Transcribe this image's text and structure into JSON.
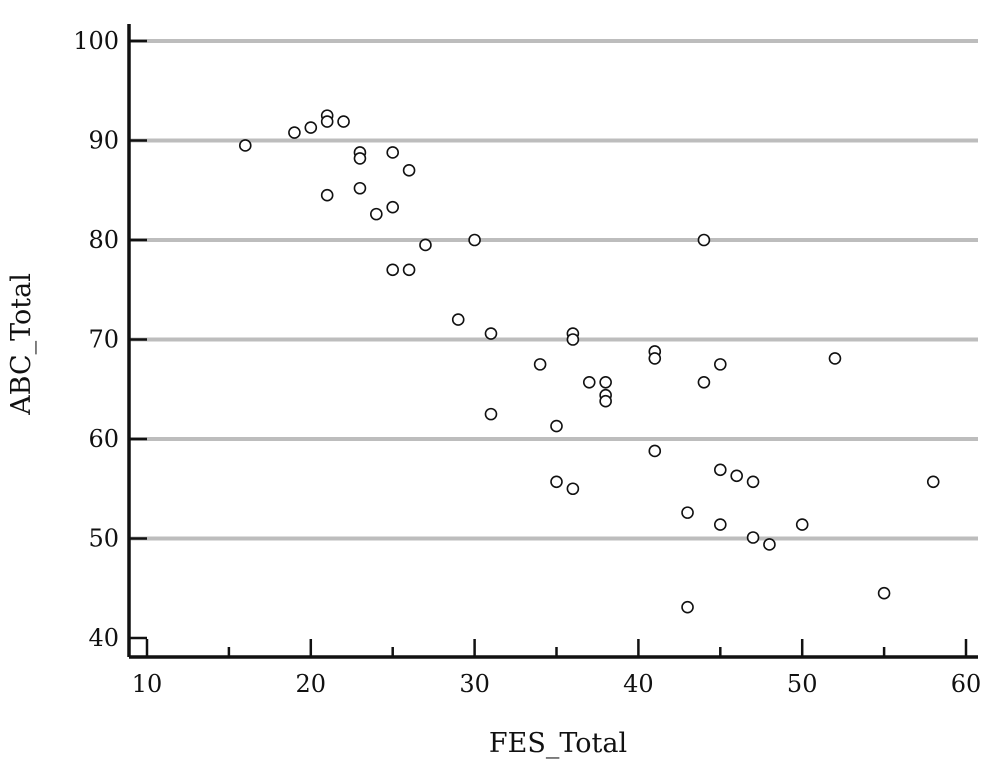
{
  "chart_data": {
    "type": "scatter",
    "xlabel": "FES_Total",
    "ylabel": "ABC_Total",
    "xlim": [
      10,
      60
    ],
    "ylim": [
      40,
      100
    ],
    "x_ticks": [
      10,
      20,
      30,
      40,
      50,
      60
    ],
    "y_ticks": [
      40,
      50,
      60,
      70,
      80,
      90,
      100
    ],
    "x_minor_step": 5,
    "grid": "horizontal",
    "legend": "none",
    "colors": {
      "grid": "#bdbdbd",
      "axis": "#111111",
      "marker_fill": "#ffffff"
    },
    "marker": "open-circle",
    "series": [
      {
        "points": [
          [
            16,
            89.5
          ],
          [
            19,
            90.8
          ],
          [
            20,
            91.3
          ],
          [
            21,
            92.5
          ],
          [
            21,
            91.9
          ],
          [
            22,
            91.9
          ],
          [
            21,
            84.5
          ],
          [
            23,
            88.8
          ],
          [
            23,
            88.2
          ],
          [
            23,
            85.2
          ],
          [
            24,
            82.6
          ],
          [
            25,
            88.8
          ],
          [
            25,
            83.3
          ],
          [
            26,
            87.0
          ],
          [
            25,
            77.0
          ],
          [
            26,
            77.0
          ],
          [
            27,
            79.5
          ],
          [
            30,
            80.0
          ],
          [
            29,
            72.0
          ],
          [
            31,
            70.6
          ],
          [
            31,
            62.5
          ],
          [
            34,
            67.5
          ],
          [
            35,
            61.3
          ],
          [
            35,
            55.7
          ],
          [
            36,
            70.6
          ],
          [
            36,
            70.0
          ],
          [
            36,
            55.0
          ],
          [
            37,
            65.7
          ],
          [
            38,
            65.7
          ],
          [
            38,
            64.4
          ],
          [
            38,
            63.8
          ],
          [
            41,
            68.8
          ],
          [
            41,
            68.1
          ],
          [
            41,
            58.8
          ],
          [
            43,
            52.6
          ],
          [
            43,
            43.1
          ],
          [
            44,
            80.0
          ],
          [
            44,
            65.7
          ],
          [
            45,
            67.5
          ],
          [
            45,
            56.9
          ],
          [
            45,
            51.4
          ],
          [
            46,
            56.3
          ],
          [
            47,
            55.7
          ],
          [
            47,
            50.1
          ],
          [
            48,
            49.4
          ],
          [
            50,
            51.4
          ],
          [
            52,
            68.1
          ],
          [
            55,
            44.5
          ],
          [
            58,
            55.7
          ]
        ]
      }
    ]
  }
}
